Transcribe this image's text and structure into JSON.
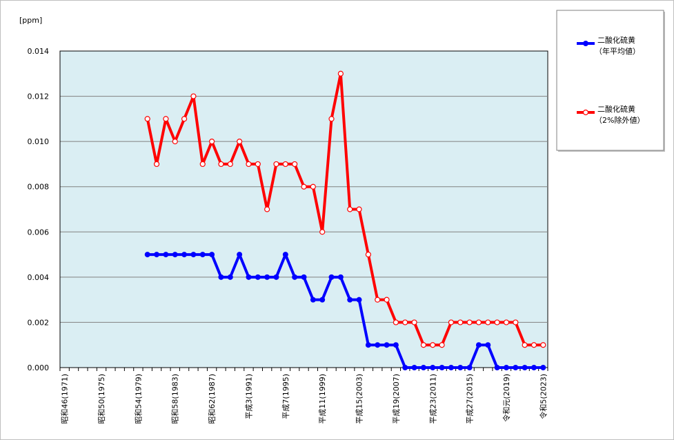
{
  "chart_data": {
    "type": "line",
    "title": "",
    "unit_label": "[ppm]",
    "xlabel": "",
    "ylabel": "",
    "ylim": [
      0,
      0.014
    ],
    "y_ticks": [
      "0.000",
      "0.002",
      "0.004",
      "0.006",
      "0.008",
      "0.010",
      "0.012",
      "0.014"
    ],
    "y_tick_values": [
      0,
      0.002,
      0.004,
      0.006,
      0.008,
      0.01,
      0.012,
      0.014
    ],
    "grid": true,
    "legend_position": "top-right",
    "plot_background": "#daeef3",
    "x_years": [
      1971,
      1972,
      1973,
      1974,
      1975,
      1976,
      1977,
      1978,
      1979,
      1980,
      1981,
      1982,
      1983,
      1984,
      1985,
      1986,
      1987,
      1988,
      1989,
      1990,
      1991,
      1992,
      1993,
      1994,
      1995,
      1996,
      1997,
      1998,
      1999,
      2000,
      2001,
      2002,
      2003,
      2004,
      2005,
      2006,
      2007,
      2008,
      2009,
      2010,
      2011,
      2012,
      2013,
      2014,
      2015,
      2016,
      2017,
      2018,
      2019,
      2020,
      2021,
      2022,
      2023
    ],
    "x_tick_labels": [
      {
        "year": 1971,
        "label": "昭和46(1971)"
      },
      {
        "year": 1975,
        "label": "昭和50(1975)"
      },
      {
        "year": 1979,
        "label": "昭和54(1979)"
      },
      {
        "year": 1983,
        "label": "昭和58(1983)"
      },
      {
        "year": 1987,
        "label": "昭和62(1987)"
      },
      {
        "year": 1991,
        "label": "平成3(1991)"
      },
      {
        "year": 1995,
        "label": "平成7(1995)"
      },
      {
        "year": 1999,
        "label": "平成11(1999)"
      },
      {
        "year": 2003,
        "label": "平成15(2003)"
      },
      {
        "year": 2007,
        "label": "平成19(2007)"
      },
      {
        "year": 2011,
        "label": "平成23(2011)"
      },
      {
        "year": 2015,
        "label": "平成27(2015)"
      },
      {
        "year": 2019,
        "label": "令和元(2019)"
      },
      {
        "year": 2023,
        "label": "令和5(2023)"
      }
    ],
    "series": [
      {
        "name_line1": "二酸化硫黄",
        "name_line2": "（年平均値）",
        "color": "#0000ff",
        "marker": "filled",
        "x": [
          1980,
          1981,
          1982,
          1983,
          1984,
          1985,
          1986,
          1987,
          1988,
          1989,
          1990,
          1991,
          1992,
          1993,
          1994,
          1995,
          1996,
          1997,
          1998,
          1999,
          2000,
          2001,
          2002,
          2003,
          2004,
          2005,
          2006,
          2007,
          2008,
          2009,
          2010,
          2011,
          2012,
          2013,
          2014,
          2015,
          2016,
          2017,
          2018,
          2019,
          2020,
          2021,
          2022,
          2023
        ],
        "values": [
          0.005,
          0.005,
          0.005,
          0.005,
          0.005,
          0.005,
          0.005,
          0.005,
          0.004,
          0.004,
          0.005,
          0.004,
          0.004,
          0.004,
          0.004,
          0.005,
          0.004,
          0.004,
          0.003,
          0.003,
          0.004,
          0.004,
          0.003,
          0.003,
          0.001,
          0.001,
          0.001,
          0.001,
          0.0,
          0.0,
          0.0,
          0.0,
          0.0,
          0.0,
          0.0,
          0.0,
          0.001,
          0.001,
          0.0,
          0.0,
          0.0,
          0.0,
          0.0,
          0.0
        ]
      },
      {
        "name_line1": "二酸化硫黄",
        "name_line2": "（2%除外値）",
        "color": "#ff0000",
        "marker": "hollow",
        "x": [
          1980,
          1981,
          1982,
          1983,
          1984,
          1985,
          1986,
          1987,
          1988,
          1989,
          1990,
          1991,
          1992,
          1993,
          1994,
          1995,
          1996,
          1997,
          1998,
          1999,
          2000,
          2001,
          2002,
          2003,
          2004,
          2005,
          2006,
          2007,
          2008,
          2009,
          2010,
          2011,
          2012,
          2013,
          2014,
          2015,
          2016,
          2017,
          2018,
          2019,
          2020,
          2021,
          2022,
          2023
        ],
        "values": [
          0.011,
          0.009,
          0.011,
          0.01,
          0.011,
          0.012,
          0.009,
          0.01,
          0.009,
          0.009,
          0.01,
          0.009,
          0.009,
          0.007,
          0.009,
          0.009,
          0.009,
          0.008,
          0.008,
          0.006,
          0.011,
          0.013,
          0.007,
          0.007,
          0.005,
          0.003,
          0.003,
          0.002,
          0.002,
          0.002,
          0.001,
          0.001,
          0.001,
          0.002,
          0.002,
          0.002,
          0.002,
          0.002,
          0.002,
          0.002,
          0.002,
          0.001,
          0.001,
          0.001
        ]
      }
    ]
  }
}
